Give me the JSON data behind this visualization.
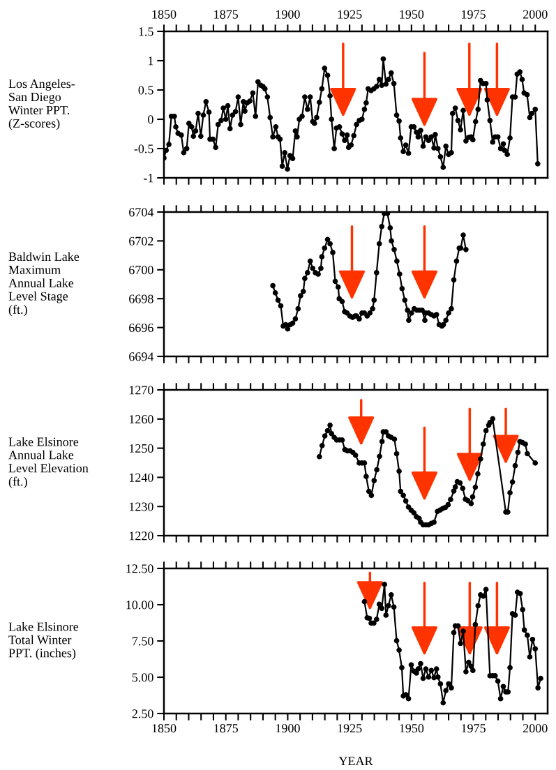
{
  "chart_data": [
    {
      "type": "line",
      "ylabel": "Los Angeles-\nSan Diego\nWinter PPT.\n(Z-scores)",
      "marker": "circle",
      "line_style": "solid",
      "tick_labels": "y",
      "xlim": [
        1850,
        2005
      ],
      "xticks": [
        {
          "value": 1850,
          "label": null
        },
        {
          "value": 1855,
          "label": null
        },
        {
          "value": 1860,
          "label": null
        },
        {
          "value": 1865,
          "label": null
        },
        {
          "value": 1870,
          "label": null
        },
        {
          "value": 1875,
          "label": null
        },
        {
          "value": 1880,
          "label": null
        },
        {
          "value": 1885,
          "label": null
        },
        {
          "value": 1890,
          "label": null
        },
        {
          "value": 1895,
          "label": null
        },
        {
          "value": 1900,
          "label": null
        },
        {
          "value": 1905,
          "label": null
        },
        {
          "value": 1910,
          "label": null
        },
        {
          "value": 1915,
          "label": null
        },
        {
          "value": 1920,
          "label": null
        },
        {
          "value": 1925,
          "label": null
        },
        {
          "value": 1930,
          "label": null
        },
        {
          "value": 1935,
          "label": null
        },
        {
          "value": 1940,
          "label": null
        },
        {
          "value": 1945,
          "label": null
        },
        {
          "value": 1950,
          "label": null
        },
        {
          "value": 1955,
          "label": null
        },
        {
          "value": 1960,
          "label": null
        },
        {
          "value": 1965,
          "label": null
        },
        {
          "value": 1970,
          "label": null
        },
        {
          "value": 1975,
          "label": null
        },
        {
          "value": 1980,
          "label": null
        },
        {
          "value": 1985,
          "label": null
        },
        {
          "value": 1990,
          "label": null
        },
        {
          "value": 1995,
          "label": null
        },
        {
          "value": 2000,
          "label": null
        }
      ],
      "x2lim": [
        1850,
        2005
      ],
      "x2ticks": [
        1850,
        {
          "value": 1855,
          "label": null
        },
        {
          "value": 1860,
          "label": null
        },
        {
          "value": 1865,
          "label": null
        },
        {
          "value": 1870,
          "label": null
        },
        1875,
        {
          "value": 1880,
          "label": null
        },
        {
          "value": 1885,
          "label": null
        },
        {
          "value": 1890,
          "label": null
        },
        {
          "value": 1895,
          "label": null
        },
        1900,
        {
          "value": 1905,
          "label": null
        },
        {
          "value": 1910,
          "label": null
        },
        {
          "value": 1915,
          "label": null
        },
        {
          "value": 1920,
          "label": null
        },
        1925,
        {
          "value": 1930,
          "label": null
        },
        {
          "value": 1935,
          "label": null
        },
        {
          "value": 1940,
          "label": null
        },
        {
          "value": 1945,
          "label": null
        },
        1950,
        {
          "value": 1955,
          "label": null
        },
        {
          "value": 1960,
          "label": null
        },
        {
          "value": 1965,
          "label": null
        },
        {
          "value": 1970,
          "label": null
        },
        1975,
        {
          "value": 1980,
          "label": null
        },
        {
          "value": 1985,
          "label": null
        },
        {
          "value": 1990,
          "label": null
        },
        {
          "value": 1995,
          "label": null
        },
        2000
      ],
      "ylim": [
        -1,
        1.5
      ],
      "yticks": [
        -1,
        -0.5,
        0,
        0.5,
        1,
        1.5
      ],
      "x": [
        1850.0,
        1850.9,
        1852.0,
        1853.0,
        1854.2,
        1854.8,
        1855.7,
        1857.0,
        1858.0,
        1859.2,
        1860.1,
        1861.2,
        1861.9,
        1862.8,
        1863.8,
        1864.9,
        1865.9,
        1867.0,
        1868.2,
        1868.6,
        1869.8,
        1870.9,
        1871.9,
        1873.1,
        1874.0,
        1875.0,
        1875.8,
        1876.7,
        1877.7,
        1878.9,
        1880.0,
        1881.0,
        1882.1,
        1882.7,
        1883.6,
        1884.7,
        1885.9,
        1887.0,
        1888.0,
        1889.1,
        1890.0,
        1890.8,
        1891.8,
        1892.9,
        1894.0,
        1895.2,
        1896.1,
        1896.9,
        1897.8,
        1898.8,
        1899.9,
        1900.9,
        1902.0,
        1903.1,
        1903.8,
        1904.7,
        1905.8,
        1906.9,
        1908.0,
        1909.1,
        1910.1,
        1910.8,
        1911.7,
        1912.8,
        1913.8,
        1914.9,
        1916.1,
        1917.1,
        1917.7,
        1918.8,
        1919.7,
        1920.9,
        1922.0,
        1923.0,
        1924.0,
        1924.6,
        1925.6,
        1926.7,
        1927.8,
        1928.9,
        1930.0,
        1931.0,
        1931.7,
        1932.5,
        1933.7,
        1934.8,
        1935.9,
        1937.0,
        1938.0,
        1938.6,
        1939.7,
        1940.7,
        1941.8,
        1942.9,
        1944.0,
        1945.0,
        1945.6,
        1946.7,
        1947.7,
        1948.8,
        1949.9,
        1951.0,
        1952.0,
        1952.7,
        1953.7,
        1954.7,
        1955.8,
        1956.9,
        1958.0,
        1959.1,
        1959.6,
        1960.7,
        1961.7,
        1962.8,
        1963.9,
        1965.0,
        1966.1,
        1966.6,
        1967.7,
        1968.8,
        1969.8,
        1970.9,
        1972.0,
        1973.1,
        1974.1,
        1974.8,
        1975.9,
        1976.9,
        1977.9,
        1979.0,
        1980.1,
        1980.6,
        1981.7,
        1982.8,
        1983.8,
        1984.9,
        1986.0,
        1987.1,
        1987.6,
        1988.7,
        1989.8,
        1990.8,
        1991.9,
        1992.7,
        1993.8,
        1994.7,
        1995.5,
        1996.7,
        1997.8,
        1998.6,
        2000.0,
        2001.0
      ],
      "series": [
        {
          "color": "#000000",
          "values": [
            -0.66,
            -0.53,
            -0.43,
            0.05,
            0.05,
            -0.13,
            -0.24,
            -0.27,
            -0.57,
            -0.5,
            -0.07,
            -0.13,
            -0.29,
            -0.2,
            0.1,
            -0.29,
            0.07,
            0.3,
            0.12,
            -0.34,
            -0.34,
            -0.48,
            -0.09,
            -0.02,
            0.19,
            0,
            0.23,
            -0.16,
            0.07,
            0.13,
            0.38,
            -0.09,
            0.3,
            0.14,
            0.28,
            0.31,
            0.45,
            0.05,
            0.64,
            0.58,
            0.56,
            0.52,
            0.38,
            0.03,
            -0.3,
            -0.13,
            -0.3,
            -0.34,
            -0.8,
            -0.57,
            -0.85,
            -0.62,
            -0.67,
            -0.2,
            -0.3,
            0,
            0.05,
            0.38,
            0.17,
            0.38,
            -0.04,
            -0.07,
            0.03,
            0.29,
            0.52,
            0.87,
            0.75,
            0.4,
            0,
            -0.5,
            -0.15,
            -0.13,
            -0.25,
            -0.36,
            -0.27,
            -0.48,
            -0.44,
            -0.28,
            -0.09,
            -0.02,
            0,
            0.17,
            0.28,
            0.52,
            0.49,
            0.52,
            0.56,
            0.68,
            0.58,
            1.03,
            0.6,
            0.68,
            0.79,
            0.61,
            0.07,
            -0.03,
            -0.32,
            -0.55,
            -0.44,
            -0.58,
            -0.13,
            -0.13,
            -0.22,
            -0.3,
            -0.19,
            -0.46,
            -0.3,
            -0.36,
            -0.3,
            -0.49,
            -0.26,
            -0.5,
            -0.64,
            -0.82,
            -0.46,
            -0.6,
            -0.57,
            0.1,
            0.19,
            -0.02,
            -0.18,
            0.15,
            -0.37,
            -0.31,
            -0.3,
            -0.35,
            -0.04,
            0.17,
            0.66,
            0.61,
            0.61,
            0.33,
            -0.02,
            -0.39,
            -0.3,
            -0.3,
            -0.5,
            -0.42,
            -0.53,
            -0.6,
            -0.32,
            0.38,
            0.38,
            0.77,
            0.81,
            0.68,
            0.45,
            0.42,
            0.03,
            0.1,
            0.17,
            -0.76
          ]
        }
      ]
    },
    {
      "type": "line",
      "ylabel": "Baldwin Lake\nMaximum\nAnnual Lake\nLevel Stage\n(ft.)",
      "marker": "circle",
      "line_style": "solid",
      "tick_labels": "y",
      "xlim": [
        1850,
        2005
      ],
      "xticks": [
        1850,
        1855,
        1860,
        1865,
        1870,
        1875,
        1880,
        1885,
        1890,
        1895,
        1900,
        1905,
        1910,
        1915,
        1920,
        1925,
        1930,
        1935,
        1940,
        1945,
        1950,
        1955,
        1960,
        1965,
        1970,
        1975,
        1980,
        1985,
        1990,
        1995,
        2000
      ],
      "ylim": [
        6694,
        6704
      ],
      "yticks": [
        6694,
        6696,
        6698,
        6700,
        6702,
        6704
      ],
      "x": [
        1894.0,
        1895.0,
        1896.1,
        1897.2,
        1898.2,
        1899.2,
        1900.0,
        1901.0,
        1902.0,
        1903.1,
        1904.2,
        1905.2,
        1906.3,
        1906.9,
        1908.0,
        1909.1,
        1910.1,
        1911.2,
        1912.3,
        1913.4,
        1913.8,
        1914.9,
        1916.1,
        1917.1,
        1918.2,
        1919.2,
        1920.4,
        1920.8,
        1922.0,
        1923.0,
        1924.0,
        1925.1,
        1926.2,
        1927.2,
        1927.8,
        1928.9,
        1930.0,
        1931.0,
        1932.1,
        1933.2,
        1934.3,
        1934.9,
        1935.9,
        1937.0,
        1938.0,
        1939.0,
        1940.3,
        1941.4,
        1941.9,
        1943.0,
        1944.1,
        1945.2,
        1946.2,
        1947.3,
        1948.4,
        1948.9,
        1950.0,
        1951.1,
        1952.2,
        1953.2,
        1954.3,
        1955.4,
        1955.8,
        1956.9,
        1958.0,
        1959.1,
        1960.1,
        1961.2,
        1962.3,
        1962.9,
        1963.9,
        1965.0,
        1966.1,
        1967.1,
        1968.2,
        1969.3,
        1969.9,
        1970.9,
        1972.0
      ],
      "series": [
        {
          "color": "#000000",
          "values": [
            6698.9,
            6698.4,
            6697.9,
            6697.5,
            6696.1,
            6696.2,
            6695.9,
            6696.2,
            6696.3,
            6696.6,
            6697.3,
            6698.2,
            6698.5,
            6699.4,
            6699.8,
            6700.6,
            6700.1,
            6699.8,
            6699.7,
            6700.1,
            6700.9,
            6701.5,
            6702.1,
            6701.8,
            6701.2,
            6699.2,
            6698.8,
            6698.0,
            6697.8,
            6697.1,
            6697.0,
            6696.8,
            6696.7,
            6696.8,
            6696.8,
            6696.6,
            6697.0,
            6697.0,
            6696.8,
            6697.0,
            6697.3,
            6697.9,
            6699.8,
            6701.8,
            6703.0,
            6703.9,
            6703.9,
            6702.9,
            6702.0,
            6701.4,
            6700.6,
            6699.7,
            6698.7,
            6697.9,
            6697.2,
            6696.5,
            6697.0,
            6697.3,
            6697.2,
            6697.2,
            6697.2,
            6696.5,
            6697.0,
            6697.0,
            6696.9,
            6696.8,
            6696.9,
            6696.2,
            6696.1,
            6696.2,
            6696.5,
            6697.0,
            6697.3,
            6699.3,
            6700.6,
            6701.5,
            6701.5,
            6702.4,
            6701.4
          ]
        }
      ]
    },
    {
      "type": "line",
      "ylabel": "Lake Elsinore\nAnnual Lake\nLevel Elevation\n(ft.)",
      "marker": "circle",
      "line_style": "solid",
      "tick_labels": "y",
      "xlim": [
        1850,
        2005
      ],
      "xticks": [
        1850,
        1855,
        1860,
        1865,
        1870,
        1875,
        1880,
        1885,
        1890,
        1895,
        1900,
        1905,
        1910,
        1915,
        1920,
        1925,
        1930,
        1935,
        1940,
        1945,
        1950,
        1955,
        1960,
        1965,
        1970,
        1975,
        1980,
        1985,
        1990,
        1995,
        2000
      ],
      "ylim": [
        1220,
        1270
      ],
      "yticks": [
        1220,
        1230,
        1240,
        1250,
        1260,
        1270
      ],
      "x": [
        1912.8,
        1913.9,
        1915.0,
        1916.1,
        1917.1,
        1917.7,
        1918.8,
        1919.8,
        1920.9,
        1922.0,
        1923.1,
        1924.1,
        1925.2,
        1926.3,
        1927.4,
        1928.9,
        1930.0,
        1931.0,
        1931.7,
        1932.8,
        1933.8,
        1934.9,
        1936.0,
        1937.1,
        1938.1,
        1938.6,
        1939.7,
        1940.7,
        1941.8,
        1943.1,
        1944.0,
        1945.0,
        1945.6,
        1946.7,
        1947.7,
        1948.8,
        1949.9,
        1951.0,
        1952.0,
        1953.1,
        1953.7,
        1954.7,
        1955.8,
        1956.9,
        1958.0,
        1959.1,
        1960.5,
        1961.6,
        1962.6,
        1963.7,
        1964.8,
        1965.8,
        1967.1,
        1967.7,
        1968.5,
        1969.6,
        1970.7,
        1971.8,
        1972.8,
        1974.1,
        1974.7,
        1975.8,
        1976.8,
        1977.9,
        1979.0,
        1980.1,
        1981.2,
        1981.7,
        1982.8,
        1988.1,
        1988.9,
        1989.8,
        1990.8,
        1991.9,
        1993.0,
        1993.8,
        1994.9,
        1996.0,
        1996.8,
        2000.0
      ],
      "series": [
        {
          "color": "#000000",
          "values": [
            1247.1,
            1250.9,
            1254.2,
            1256.0,
            1257.9,
            1255.0,
            1253.7,
            1252.8,
            1252.8,
            1252.8,
            1249.5,
            1249.1,
            1249.1,
            1248.6,
            1247.6,
            1244.9,
            1244.9,
            1244.9,
            1240.3,
            1235.2,
            1233.8,
            1238.9,
            1242.6,
            1247.2,
            1252.3,
            1255.6,
            1255.6,
            1254.2,
            1253.7,
            1253.1,
            1248.1,
            1242.1,
            1235.2,
            1233.8,
            1231.9,
            1229.8,
            1228.7,
            1227.8,
            1226.5,
            1225.9,
            1224.6,
            1223.7,
            1223.7,
            1223.7,
            1224.2,
            1224.6,
            1228.3,
            1228.8,
            1229.3,
            1229.7,
            1230.6,
            1232.4,
            1235.3,
            1236.7,
            1238.5,
            1238.1,
            1236.2,
            1232.5,
            1232.0,
            1231.0,
            1233.3,
            1236.6,
            1241.2,
            1246.3,
            1251.4,
            1256.0,
            1257.9,
            1258.8,
            1260.1,
            1228.1,
            1228.1,
            1234.7,
            1238.4,
            1244.0,
            1248.6,
            1252.3,
            1251.9,
            1251.4,
            1248.1,
            1244.9
          ]
        }
      ]
    },
    {
      "type": "line",
      "ylabel": "Lake Elsinore\nTotal Winter\nPPT. (inches)",
      "xlabel": "YEAR",
      "marker": "circle",
      "line_style": "solid",
      "xlim": [
        1850,
        2005
      ],
      "xticks": [
        1850,
        {
          "value": 1855,
          "label": null
        },
        {
          "value": 1860,
          "label": null
        },
        {
          "value": 1865,
          "label": null
        },
        {
          "value": 1870,
          "label": null
        },
        1875,
        {
          "value": 1880,
          "label": null
        },
        {
          "value": 1885,
          "label": null
        },
        {
          "value": 1890,
          "label": null
        },
        {
          "value": 1895,
          "label": null
        },
        1900,
        {
          "value": 1905,
          "label": null
        },
        {
          "value": 1910,
          "label": null
        },
        {
          "value": 1915,
          "label": null
        },
        {
          "value": 1920,
          "label": null
        },
        1925,
        {
          "value": 1930,
          "label": null
        },
        {
          "value": 1935,
          "label": null
        },
        {
          "value": 1940,
          "label": null
        },
        {
          "value": 1945,
          "label": null
        },
        1950,
        {
          "value": 1955,
          "label": null
        },
        {
          "value": 1960,
          "label": null
        },
        {
          "value": 1965,
          "label": null
        },
        {
          "value": 1970,
          "label": null
        },
        1975,
        {
          "value": 1980,
          "label": null
        },
        {
          "value": 1985,
          "label": null
        },
        {
          "value": 1990,
          "label": null
        },
        {
          "value": 1995,
          "label": null
        },
        2000
      ],
      "ylim": [
        2.5,
        12.5
      ],
      "yticks": [
        {
          "value": 2.5,
          "label": "2.50"
        },
        {
          "value": 5,
          "label": "5.00"
        },
        {
          "value": 7.5,
          "label": "7.50"
        },
        {
          "value": 10,
          "label": "10.00"
        },
        {
          "value": 12.5,
          "label": "12.50"
        }
      ],
      "x": [
        1931.0,
        1932.1,
        1933.0,
        1933.7,
        1934.8,
        1935.9,
        1937.0,
        1938.0,
        1939.1,
        1939.7,
        1940.7,
        1941.8,
        1942.9,
        1944.0,
        1945.0,
        1946.1,
        1946.7,
        1947.7,
        1948.8,
        1949.9,
        1951.0,
        1952.0,
        1952.7,
        1953.7,
        1954.7,
        1955.8,
        1956.9,
        1958.0,
        1959.1,
        1960.1,
        1960.7,
        1961.7,
        1962.8,
        1963.9,
        1965.0,
        1966.1,
        1967.1,
        1967.7,
        1968.8,
        1969.8,
        1970.9,
        1972.0,
        1973.1,
        1974.1,
        1974.8,
        1975.8,
        1976.9,
        1977.9,
        1979.0,
        1980.1,
        1981.7,
        1982.8,
        1983.8,
        1984.9,
        1986.0,
        1987.1,
        1988.1,
        1989.0,
        1989.8,
        1990.8,
        1991.9,
        1992.8,
        1993.9,
        1994.9,
        1995.6,
        1996.8,
        1997.8,
        1998.9,
        2000.0,
        2001.1,
        2002.2
      ],
      "series": [
        {
          "color": "#000000",
          "values": [
            10.21,
            9.1,
            9.06,
            8.73,
            8.73,
            8.99,
            10.03,
            9.75,
            11.4,
            9.28,
            9.93,
            10.68,
            9.84,
            7.52,
            6.87,
            5.66,
            3.71,
            3.8,
            3.52,
            5.85,
            5.42,
            5.29,
            5.57,
            5.94,
            4.92,
            5.57,
            5.01,
            5.47,
            4.97,
            5.57,
            5.01,
            4.54,
            3.24,
            4.08,
            4.54,
            4.27,
            8.08,
            8.54,
            8.54,
            7.33,
            8.17,
            5.38,
            6.03,
            5.75,
            5.47,
            8.63,
            9.93,
            10.68,
            10.59,
            11.05,
            5.1,
            5.1,
            5.1,
            4.73,
            3.52,
            4.36,
            3.99,
            3.99,
            5.66,
            9.38,
            9.28,
            10.86,
            10.77,
            9.66,
            8.26,
            7.89,
            6.4,
            7.61,
            6.96,
            4.27,
            4.92
          ]
        }
      ]
    }
  ]
}
